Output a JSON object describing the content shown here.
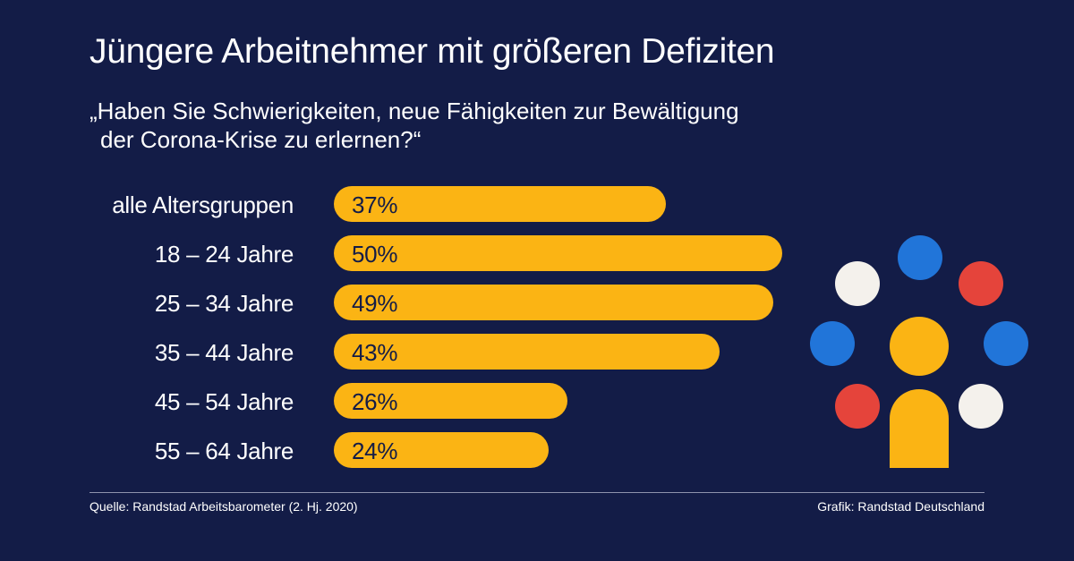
{
  "header": {
    "title": "Jüngere Arbeitnehmer mit größeren Defiziten",
    "subtitle_line1": "„Haben Sie Schwierigkeiten, neue Fähigkeiten zur Bewältigung",
    "subtitle_line2": "der Corona-Krise zu erlernen?“"
  },
  "chart_data": {
    "type": "bar",
    "orientation": "horizontal",
    "title": "Jüngere Arbeitnehmer mit größeren Defiziten",
    "categories": [
      "alle Altersgruppen",
      "18 – 24 Jahre",
      "25 – 34 Jahre",
      "35 – 44 Jahre",
      "45 – 54 Jahre",
      "55 – 64 Jahre"
    ],
    "values": [
      37,
      50,
      49,
      43,
      26,
      24
    ],
    "value_labels": [
      "37%",
      "50%",
      "49%",
      "43%",
      "26%",
      "24%"
    ],
    "unit": "%",
    "xlim": [
      0,
      50
    ],
    "grid": false,
    "colors": {
      "bar": "#fbb414",
      "background": "#131c47",
      "label_on_bar": "#131c47"
    }
  },
  "footer": {
    "source": "Quelle: Randstad Arbeitsbarometer (2. Hj. 2020)",
    "credit": "Grafik: Randstad Deutschland"
  },
  "logo": {
    "name": "randstad-people-logo",
    "colors": {
      "white": "#f4f1ec",
      "blue": "#2175d9",
      "red": "#e5443b",
      "yellow": "#fbb414"
    }
  }
}
